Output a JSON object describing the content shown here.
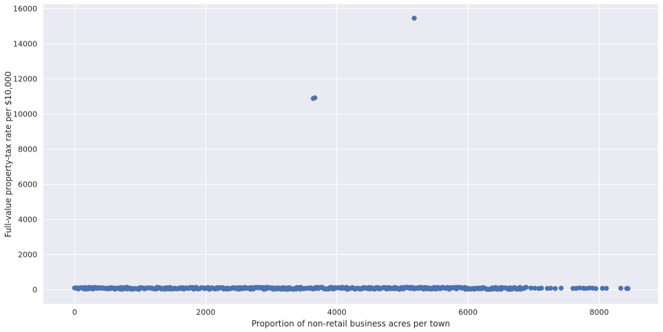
{
  "chart_data": {
    "type": "scatter",
    "title": "",
    "xlabel": "Proportion of non-retail business acres per town",
    "ylabel": "Full-value property-tax rate per $10,000",
    "xlim": [
      -475,
      8900
    ],
    "ylim": [
      -800,
      16250
    ],
    "xticks": [
      0,
      2000,
      4000,
      6000,
      8000
    ],
    "yticks": [
      0,
      2000,
      4000,
      6000,
      8000,
      10000,
      12000,
      14000,
      16000
    ],
    "xtick_labels": [
      "0",
      "2000",
      "4000",
      "6000",
      "8000"
    ],
    "ytick_labels": [
      "0",
      "2000",
      "4000",
      "6000",
      "8000",
      "10000",
      "12000",
      "14000",
      "16000"
    ],
    "grid": true,
    "background": "#eaeaf2",
    "marker_color": "#4c72b0",
    "outliers": [
      {
        "x": 5180,
        "y": 15450
      },
      {
        "x": 3640,
        "y": 10880
      },
      {
        "x": 3665,
        "y": 10920
      }
    ],
    "baseline_band": {
      "x_range": [
        0,
        8450
      ],
      "y_range": [
        20,
        140
      ]
    },
    "sparse_points_x": [
      8330,
      8420,
      8440,
      8050,
      8110,
      7950,
      7900,
      7850,
      7800,
      7760,
      7700,
      7650,
      7600,
      7420,
      7330,
      7260,
      7210,
      7120,
      7080,
      7020,
      6960
    ]
  }
}
